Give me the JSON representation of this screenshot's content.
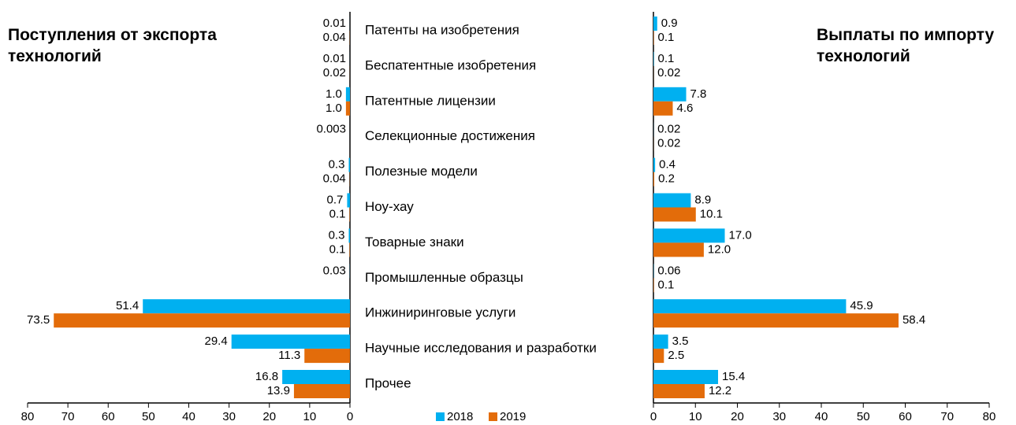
{
  "chart_data": [
    {
      "type": "bar",
      "orientation": "horizontal",
      "x_reversed": true,
      "title": "Поступления от экспорта технологий",
      "categories": [
        "Патенты на изобретения",
        "Беспатентные изобретения",
        "Патентные лицензии",
        "Селекционные достижения",
        "Полезные модели",
        "Ноу-хау",
        "Товарные знаки",
        "Промышленные образцы",
        "Инжиниринговые услуги",
        "Научные исследования и разработки",
        "Прочее"
      ],
      "series": [
        {
          "name": "2018",
          "color": "#00b0f0",
          "values": [
            0.01,
            0.01,
            1.0,
            0.003,
            0.3,
            0.7,
            0.3,
            0.03,
            51.4,
            29.4,
            16.8
          ],
          "value_labels": [
            "0.01",
            "0.01",
            "1.0",
            "0.003",
            "0.3",
            "0.7",
            "0.3",
            "0.03",
            "51.4",
            "29.4",
            "16.8"
          ]
        },
        {
          "name": "2019",
          "color": "#e36c0a",
          "values": [
            0.04,
            0.02,
            1.0,
            null,
            0.04,
            0.1,
            0.1,
            null,
            73.5,
            11.3,
            13.9
          ],
          "value_labels": [
            "0.04",
            "0.02",
            "1.0",
            null,
            "0.04",
            "0.1",
            "0.1",
            null,
            "73.5",
            "11.3",
            "13.9"
          ]
        }
      ],
      "xlim": [
        0,
        80
      ],
      "xticks": [
        0,
        10,
        20,
        30,
        40,
        50,
        60,
        70,
        80
      ],
      "legend": "bottom"
    },
    {
      "type": "bar",
      "orientation": "horizontal",
      "x_reversed": false,
      "title": "Выплаты по импорту технологий",
      "series": [
        {
          "color": "#00b0f0",
          "values": [
            0.9,
            0.1,
            7.8,
            0.02,
            0.4,
            8.9,
            17.0,
            0.06,
            45.9,
            3.5,
            15.4
          ],
          "value_labels": [
            "0.9",
            "0.1",
            "7.8",
            "0.02",
            "0.4",
            "8.9",
            "17.0",
            "0.06",
            "45.9",
            "3.5",
            "15.4"
          ]
        },
        {
          "color": "#e36c0a",
          "values": [
            0.1,
            0.02,
            4.6,
            0.02,
            0.2,
            10.1,
            12.0,
            0.1,
            58.4,
            2.5,
            12.2
          ],
          "value_labels": [
            "0.1",
            "0.02",
            "4.6",
            "0.02",
            "0.2",
            "10.1",
            "12.0",
            "0.1",
            "58.4",
            "2.5",
            "12.2"
          ]
        }
      ],
      "xlim": [
        0,
        80
      ],
      "xticks": [
        0,
        10,
        20,
        30,
        40,
        50,
        60,
        70,
        80
      ]
    }
  ]
}
